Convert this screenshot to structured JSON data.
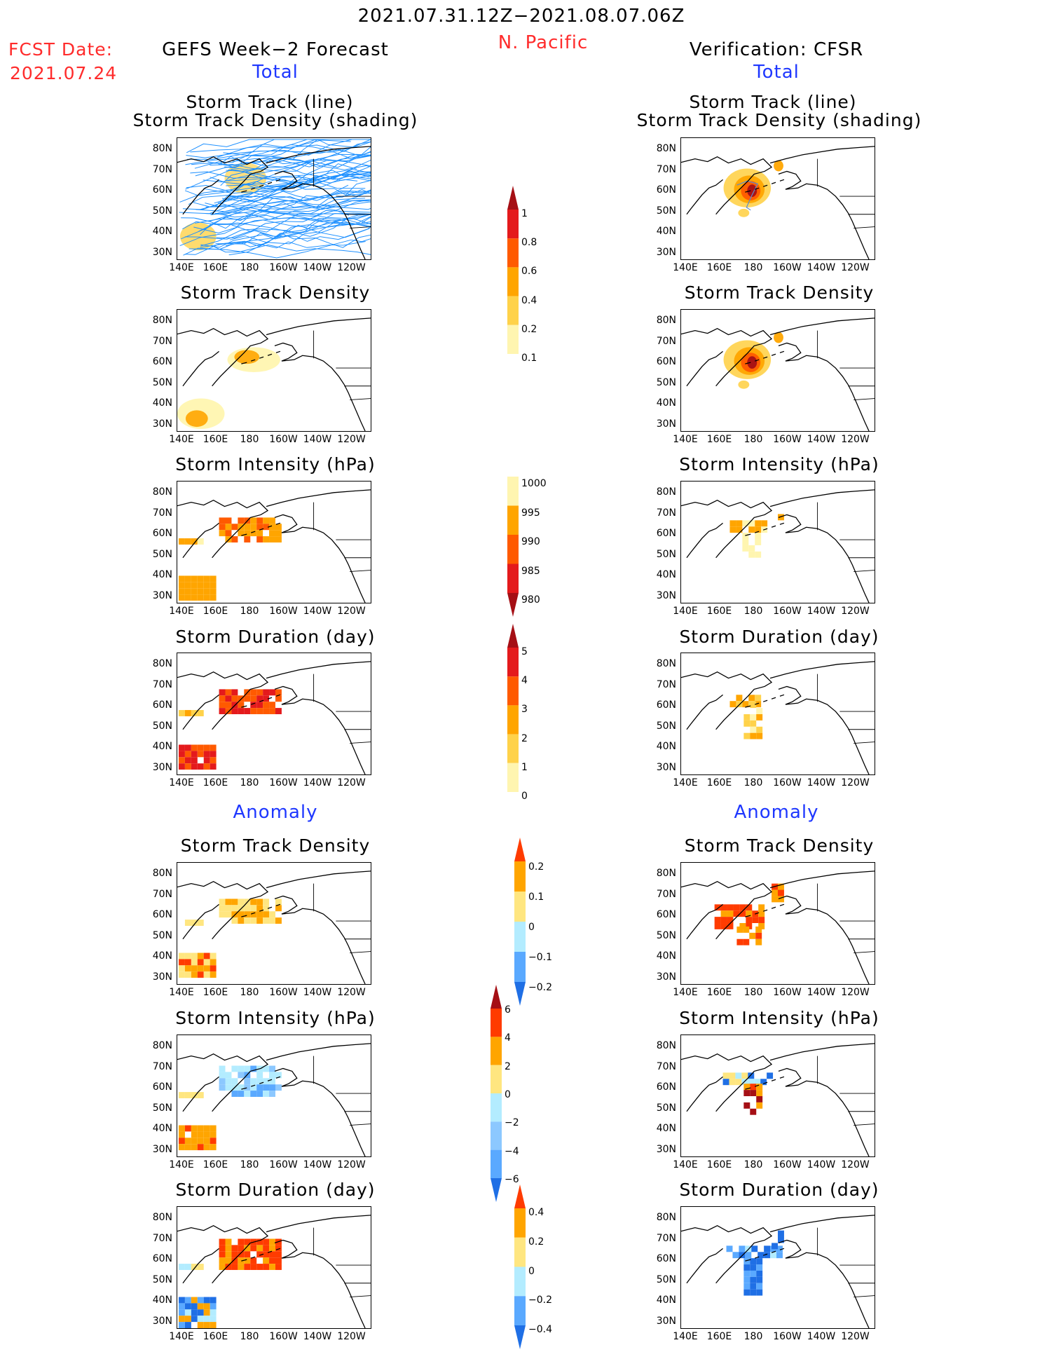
{
  "header": {
    "date_range": "2021.07.31.12Z−2021.08.07.06Z",
    "region": "N. Pacific",
    "fcst_label": "FCST Date:",
    "fcst_date": "2021.07.24",
    "left_title": "GEFS Week−2 Forecast",
    "right_title": "Verification: CFSR",
    "total_label": "Total",
    "anomaly_label": "Anomaly"
  },
  "panels": {
    "track_line": "Storm Track (line)",
    "track_density_shading": "Storm Track Density (shading)",
    "track_density": "Storm Track Density",
    "intensity": "Storm Intensity (hPa)",
    "duration": "Storm Duration (day)"
  },
  "axes": {
    "lat_labels": [
      "80N",
      "70N",
      "60N",
      "50N",
      "40N",
      "30N"
    ],
    "lon_labels": [
      "140E",
      "160E",
      "180",
      "160W",
      "140W",
      "120W"
    ]
  },
  "colorbars": {
    "density": {
      "labels": [
        "1",
        "0.8",
        "0.6",
        "0.4",
        "0.2",
        "0.1"
      ],
      "colors": [
        "#a50f15",
        "#e41a1c",
        "#ff5a00",
        "#ffa500",
        "#ffd24a",
        "#fff5b0"
      ]
    },
    "intensity": {
      "labels": [
        "1000",
        "995",
        "990",
        "985",
        "980"
      ],
      "colors": [
        "#fff5b0",
        "#ffa500",
        "#ff5a00",
        "#e41a1c",
        "#a50f15"
      ]
    },
    "duration": {
      "labels": [
        "5",
        "4",
        "3",
        "2",
        "1",
        "0"
      ],
      "colors": [
        "#a50f15",
        "#e41a1c",
        "#ff5a00",
        "#ffa500",
        "#ffd24a",
        "#fff5b0"
      ]
    },
    "anom_density": {
      "labels": [
        "0.2",
        "0.1",
        "0",
        "−0.1",
        "−0.2"
      ],
      "colors": [
        "#ff3b00",
        "#ffa500",
        "#ffe680",
        "#b3ecff",
        "#5aa9ff",
        "#1f6fe5"
      ]
    },
    "anom_intensity": {
      "labels": [
        "6",
        "4",
        "2",
        "0",
        "−2",
        "−4",
        "−6"
      ],
      "colors": [
        "#a50f15",
        "#ff3b00",
        "#ffa500",
        "#ffe680",
        "#b3ecff",
        "#8cc8ff",
        "#5aa9ff",
        "#1f6fe5"
      ]
    },
    "anom_duration": {
      "labels": [
        "0.4",
        "0.2",
        "0",
        "−0.2",
        "−0.4"
      ],
      "colors": [
        "#ff3b00",
        "#ffa500",
        "#ffe680",
        "#b3ecff",
        "#5aa9ff",
        "#1f6fe5"
      ]
    }
  }
}
